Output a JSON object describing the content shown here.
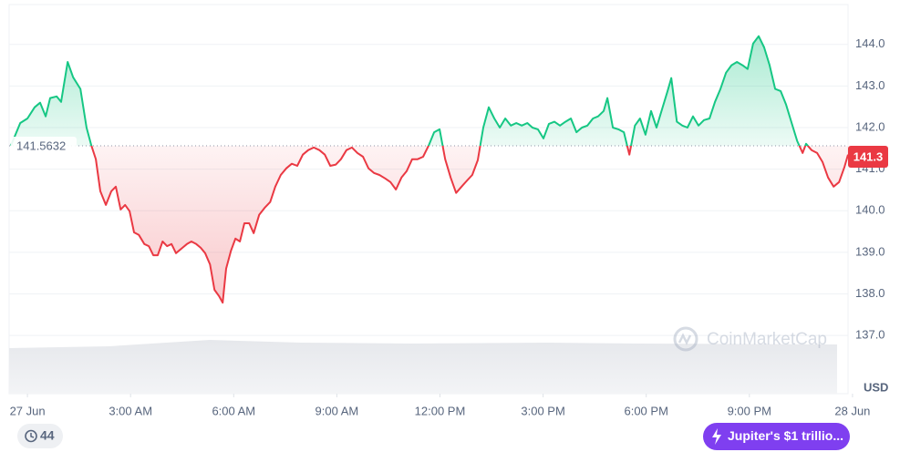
{
  "chart_data": {
    "type": "line",
    "x": [
      -0.48,
      -0.21,
      0,
      0.21,
      0.37,
      0.53,
      0.66,
      0.85,
      0.98,
      1.17,
      1.33,
      1.54,
      1.72,
      1.86,
      1.99,
      2.12,
      2.28,
      2.44,
      2.57,
      2.71,
      2.84,
      2.97,
      3.1,
      3.24,
      3.4,
      3.53,
      3.66,
      3.79,
      3.93,
      4.06,
      4.19,
      4.32,
      4.51,
      4.64,
      4.77,
      4.91,
      5.04,
      5.17,
      5.31,
      5.44,
      5.57,
      5.68,
      5.78,
      5.92,
      6.05,
      6.18,
      6.31,
      6.45,
      6.58,
      6.74,
      6.9,
      7.06,
      7.21,
      7.37,
      7.53,
      7.69,
      7.85,
      8.01,
      8.17,
      8.33,
      8.49,
      8.65,
      8.81,
      8.97,
      9.12,
      9.28,
      9.44,
      9.6,
      9.76,
      9.92,
      10.08,
      10.24,
      10.4,
      10.56,
      10.72,
      10.88,
      11.03,
      11.19,
      11.35,
      11.51,
      11.67,
      11.83,
      11.99,
      12.15,
      12.31,
      12.47,
      12.63,
      12.79,
      12.94,
      13.1,
      13.26,
      13.42,
      13.58,
      13.74,
      13.9,
      14.06,
      14.22,
      14.38,
      14.54,
      14.69,
      14.85,
      15.01,
      15.17,
      15.33,
      15.49,
      15.65,
      15.81,
      15.97,
      16.13,
      16.29,
      16.45,
      16.6,
      16.76,
      16.87,
      17.03,
      17.19,
      17.35,
      17.51,
      17.67,
      17.82,
      17.98,
      18.14,
      18.3,
      18.46,
      18.62,
      18.73,
      18.89,
      19.05,
      19.2,
      19.36,
      19.52,
      19.68,
      19.84,
      20,
      20.16,
      20.32,
      20.48,
      20.64,
      20.8,
      20.95,
      21.11,
      21.27,
      21.43,
      21.59,
      21.75,
      21.91,
      22.07,
      22.23,
      22.39,
      22.55,
      22.65,
      22.81,
      22.97,
      23.13,
      23.29,
      23.45,
      23.61,
      23.77,
      23.87
    ],
    "values": [
      141.57,
      142.11,
      142.22,
      142.49,
      142.6,
      142.27,
      142.71,
      142.75,
      142.62,
      143.58,
      143.21,
      142.93,
      142,
      141.57,
      141.24,
      140.47,
      140.14,
      140.47,
      140.58,
      140.03,
      140.14,
      139.99,
      139.48,
      139.42,
      139.2,
      139.15,
      138.93,
      138.93,
      139.26,
      139.15,
      139.2,
      138.98,
      139.11,
      139.2,
      139.26,
      139.2,
      139.11,
      138.98,
      138.71,
      138.1,
      137.95,
      137.79,
      138.61,
      139.04,
      139.33,
      139.26,
      139.7,
      139.7,
      139.46,
      139.9,
      140.07,
      140.21,
      140.58,
      140.86,
      141.02,
      141.13,
      141.08,
      141.35,
      141.46,
      141.52,
      141.46,
      141.35,
      141.08,
      141.11,
      141.24,
      141.46,
      141.52,
      141.39,
      141.3,
      141.02,
      140.91,
      140.86,
      140.78,
      140.69,
      140.51,
      140.8,
      140.95,
      141.24,
      141.24,
      141.3,
      141.57,
      141.89,
      141.96,
      141.24,
      140.8,
      140.43,
      140.58,
      140.73,
      140.86,
      141.22,
      142,
      142.49,
      142.22,
      142,
      142.22,
      142.05,
      142.11,
      142.05,
      142.11,
      142,
      141.96,
      141.74,
      142.09,
      142.14,
      142.05,
      142.14,
      142.22,
      141.89,
      142,
      142.05,
      142.22,
      142.27,
      142.4,
      142.71,
      142,
      141.96,
      141.89,
      141.35,
      142.05,
      142.22,
      141.83,
      142.4,
      142,
      142.44,
      142.88,
      143.19,
      142.14,
      142.05,
      142,
      142.27,
      142.05,
      142.18,
      142.22,
      142.62,
      142.93,
      143.32,
      143.5,
      143.58,
      143.5,
      143.41,
      144.02,
      144.2,
      143.93,
      143.5,
      142.93,
      142.88,
      142.55,
      142.11,
      141.68,
      141.39,
      141.61,
      141.46,
      141.39,
      141.17,
      140.8,
      140.58,
      140.69,
      141.06,
      141.35
    ],
    "colors": {
      "above": "#16c784",
      "below": "#ea3943"
    },
    "baseline": 141.5632,
    "current_price": 141.3,
    "xlim": [
      -0.48,
      23.87
    ],
    "xticks": [
      {
        "value": 0,
        "label": "27 Jun"
      },
      {
        "value": 3,
        "label": "3:00 AM"
      },
      {
        "value": 6,
        "label": "6:00 AM"
      },
      {
        "value": 9,
        "label": "9:00 AM"
      },
      {
        "value": 12,
        "label": "12:00 PM"
      },
      {
        "value": 15,
        "label": "3:00 PM"
      },
      {
        "value": 18,
        "label": "6:00 PM"
      },
      {
        "value": 21,
        "label": "9:00 PM"
      },
      {
        "value": 24,
        "label": "28 Jun"
      }
    ],
    "ylim": [
      135.6,
      144.96
    ],
    "yticks": [
      {
        "value": 137,
        "label": "137.0"
      },
      {
        "value": 138,
        "label": "138.0"
      },
      {
        "value": 139,
        "label": "139.0"
      },
      {
        "value": 140,
        "label": "140.0"
      },
      {
        "value": 141,
        "label": "141.0"
      },
      {
        "value": 142,
        "label": "142.0"
      },
      {
        "value": 143,
        "label": "143.0"
      },
      {
        "value": 144,
        "label": "144.0"
      }
    ],
    "grid": true,
    "y_axis_label": "USD",
    "watermark": "CoinMarketCap"
  },
  "badges": {
    "history_count": 44,
    "news": "Jupiter's $1 trillio..."
  }
}
